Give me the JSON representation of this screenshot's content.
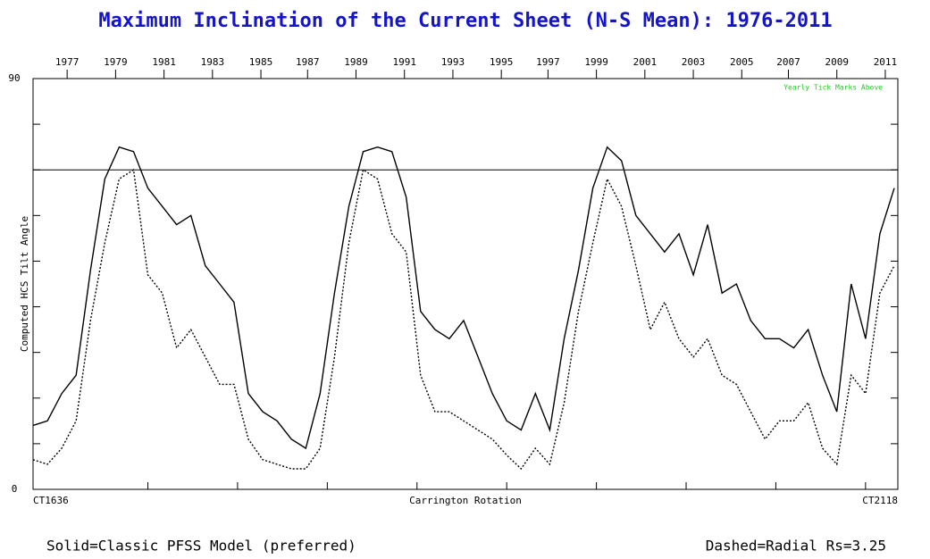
{
  "chart_data": {
    "type": "line",
    "title": "Maximum Inclination of the Current Sheet (N-S Mean): 1976-2011",
    "y_label": "Computed HCS Tilt Angle",
    "x_label": "Carrington Rotation",
    "annotation": "Yearly Tick Marks Above",
    "footer_left": "Solid=Classic PFSS Model (preferred)",
    "footer_right": "Dashed=Radial Rs=3.25",
    "xlim": [
      1636,
      2118
    ],
    "ylim": [
      0,
      90
    ],
    "xticks": [
      {
        "value": 1636,
        "label": "CT1636"
      },
      {
        "value": 1700,
        "label": null
      },
      {
        "value": 1750,
        "label": null
      },
      {
        "value": 1800,
        "label": null
      },
      {
        "value": 1850,
        "label": null
      },
      {
        "value": 1900,
        "label": null
      },
      {
        "value": 1950,
        "label": null
      },
      {
        "value": 2000,
        "label": null
      },
      {
        "value": 2050,
        "label": null
      },
      {
        "value": 2100,
        "label": null
      },
      {
        "value": 2118,
        "label": "CT2118"
      }
    ],
    "x2ticks": [
      {
        "value": 1655,
        "label": "1977"
      },
      {
        "value": 1682,
        "label": "1979"
      },
      {
        "value": 1709,
        "label": "1981"
      },
      {
        "value": 1736,
        "label": "1983"
      },
      {
        "value": 1763,
        "label": "1985"
      },
      {
        "value": 1789,
        "label": "1987"
      },
      {
        "value": 1816,
        "label": "1989"
      },
      {
        "value": 1843,
        "label": "1991"
      },
      {
        "value": 1870,
        "label": "1993"
      },
      {
        "value": 1897,
        "label": "1995"
      },
      {
        "value": 1923,
        "label": "1997"
      },
      {
        "value": 1950,
        "label": "1999"
      },
      {
        "value": 1977,
        "label": "2001"
      },
      {
        "value": 2004,
        "label": "2003"
      },
      {
        "value": 2031,
        "label": "2005"
      },
      {
        "value": 2057,
        "label": "2007"
      },
      {
        "value": 2084,
        "label": "2009"
      },
      {
        "value": 2111,
        "label": "2011"
      }
    ],
    "yticks": [
      0,
      {
        "value": 10,
        "label": null
      },
      {
        "value": 20,
        "label": null
      },
      {
        "value": 30,
        "label": null
      },
      {
        "value": 40,
        "label": null
      },
      {
        "value": 50,
        "label": null
      },
      {
        "value": 60,
        "label": null
      },
      {
        "value": 70,
        "label": null
      },
      {
        "value": 80,
        "label": null
      },
      90
    ],
    "reference_line": 70,
    "x": [
      1636,
      1644,
      1652,
      1660,
      1668,
      1676,
      1684,
      1692,
      1700,
      1708,
      1716,
      1724,
      1732,
      1740,
      1748,
      1756,
      1764,
      1772,
      1780,
      1788,
      1796,
      1804,
      1812,
      1820,
      1828,
      1836,
      1844,
      1852,
      1860,
      1868,
      1876,
      1884,
      1892,
      1900,
      1908,
      1916,
      1924,
      1932,
      1940,
      1948,
      1956,
      1964,
      1972,
      1980,
      1988,
      1996,
      2004,
      2012,
      2020,
      2028,
      2036,
      2044,
      2052,
      2060,
      2068,
      2076,
      2084,
      2092,
      2100,
      2108,
      2116
    ],
    "series": [
      {
        "name": "Classic PFSS Model",
        "color": "#000000",
        "style": "solid",
        "values": [
          14,
          15,
          21,
          25,
          48,
          68,
          75,
          74,
          66,
          62,
          58,
          60,
          49,
          45,
          41,
          21,
          17,
          15,
          11,
          9,
          21,
          43,
          62,
          74,
          75,
          74,
          64,
          39,
          35,
          33,
          37,
          29,
          21,
          15,
          13,
          21,
          13,
          33,
          48,
          66,
          75,
          72,
          60,
          56,
          52,
          56,
          47,
          58,
          43,
          45,
          37,
          33,
          33,
          31,
          35,
          25,
          17,
          45,
          33,
          56,
          66
        ]
      },
      {
        "name": "Radial Rs=3.25",
        "color": "#000000",
        "style": "dashed",
        "values": [
          6.5,
          5.5,
          9,
          15,
          37,
          54,
          68,
          70,
          47,
          43,
          31,
          35,
          29,
          23,
          23,
          11,
          6.5,
          5.5,
          4.5,
          4.5,
          9,
          29,
          54,
          70,
          68,
          56,
          52,
          25,
          17,
          17,
          15,
          13,
          11,
          7.5,
          4.5,
          9,
          5.5,
          19,
          39,
          54,
          68,
          62,
          49,
          35,
          41,
          33,
          29,
          33,
          25,
          23,
          17,
          11,
          15,
          15,
          19,
          9,
          5.5,
          25,
          21,
          43,
          49
        ]
      }
    ]
  }
}
